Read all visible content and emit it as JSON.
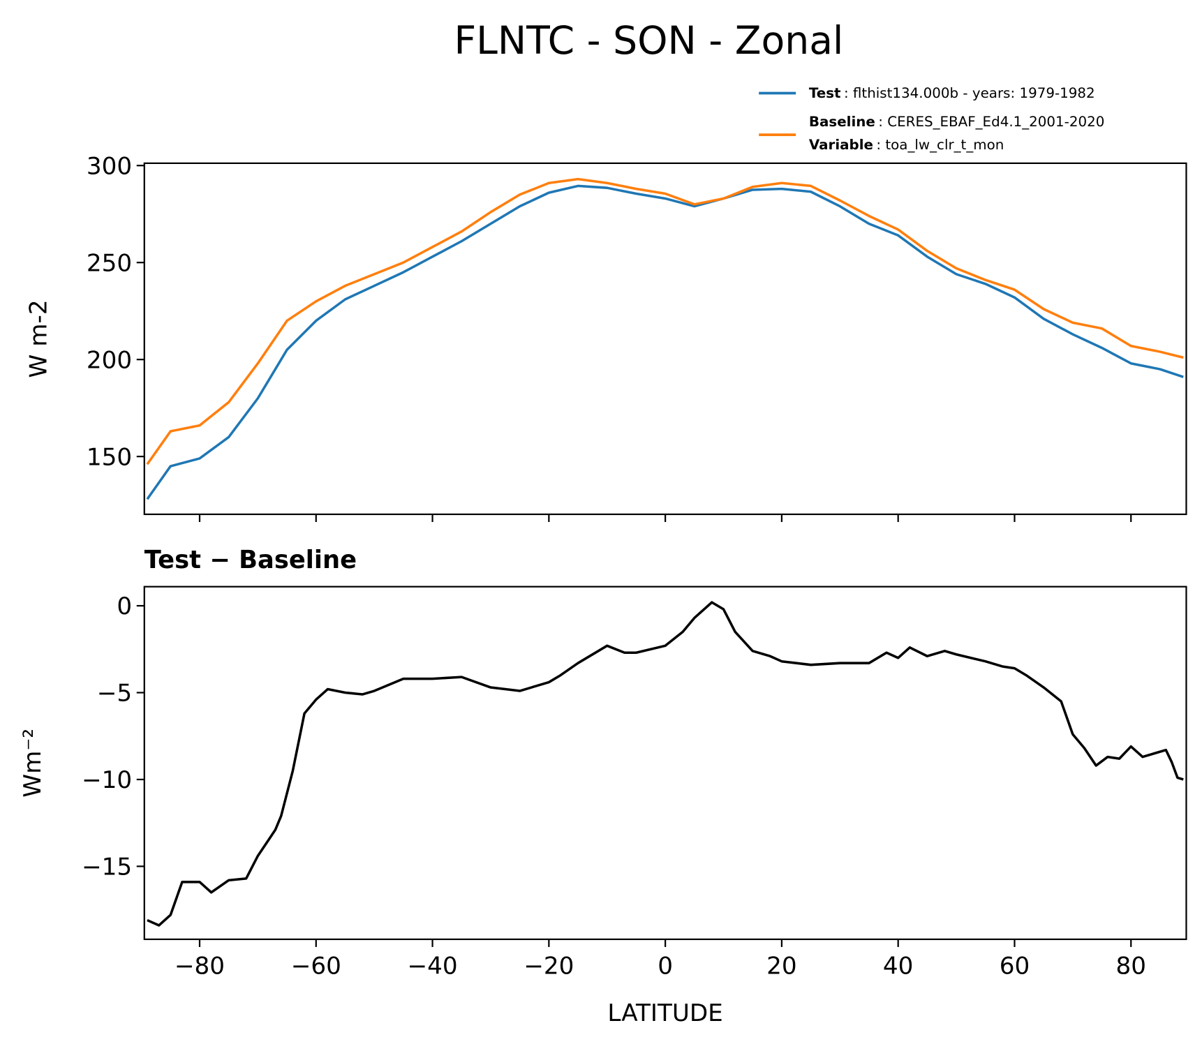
{
  "chart_data": [
    {
      "type": "line",
      "title": "FLNTC - SON - Zonal",
      "ylabel": "W m-2",
      "x": [
        -89,
        -85,
        -80,
        -75,
        -70,
        -65,
        -60,
        -55,
        -50,
        -45,
        -40,
        -35,
        -30,
        -25,
        -20,
        -15,
        -10,
        -5,
        0,
        5,
        10,
        15,
        20,
        25,
        30,
        35,
        40,
        45,
        50,
        55,
        60,
        65,
        70,
        75,
        80,
        85,
        89
      ],
      "series": [
        {
          "name": "Test",
          "legend_text": ": flthist134.000b - years: 1979-1982",
          "color": "#1f77b4",
          "values": [
            128,
            145,
            149,
            160,
            180,
            205,
            220,
            231,
            238,
            245,
            253,
            261,
            270,
            279,
            286,
            289.5,
            288.5,
            285.5,
            283,
            279,
            283,
            287.5,
            288,
            286.5,
            279,
            270,
            264,
            253,
            244,
            239,
            232,
            221,
            213,
            206,
            198,
            195,
            191
          ]
        },
        {
          "name": "Baseline",
          "legend_text": ": CERES_EBAF_Ed4.1_2001-2020",
          "color": "#ff7f0e",
          "values": [
            146,
            163,
            166,
            178,
            198,
            220,
            230,
            238,
            244,
            250,
            258,
            266,
            276,
            285,
            291,
            293,
            291,
            288,
            285.5,
            280,
            283,
            289,
            291,
            289.5,
            282,
            274,
            267,
            256,
            247,
            241,
            236,
            226,
            219,
            216,
            207,
            204,
            201
          ]
        }
      ],
      "legend_extra": {
        "label": "Variable",
        "text": ": toa_lw_clr_t_mon"
      },
      "xlim": [
        -89.5,
        89.5
      ],
      "xticks": [
        -80,
        -60,
        -40,
        -20,
        0,
        20,
        40,
        60,
        80
      ],
      "ylim": [
        120.2,
        301.2
      ],
      "yticks": [
        150,
        200,
        250,
        300
      ]
    },
    {
      "type": "line",
      "title": "Test − Baseline",
      "xlabel": "LATITUDE",
      "ylabel": "Wm⁻²",
      "x": [
        -89,
        -87,
        -85,
        -83,
        -80,
        -78,
        -75,
        -72,
        -70,
        -67,
        -66,
        -64,
        -62,
        -60,
        -58,
        -55,
        -52,
        -50,
        -45,
        -40,
        -35,
        -30,
        -25,
        -20,
        -18,
        -15,
        -10,
        -7,
        -5,
        0,
        3,
        5,
        8,
        10,
        12,
        15,
        18,
        20,
        25,
        30,
        35,
        38,
        40,
        42,
        45,
        48,
        50,
        55,
        58,
        60,
        62,
        65,
        68,
        70,
        72,
        74,
        76,
        78,
        80,
        82,
        84,
        86,
        87,
        88,
        89
      ],
      "series": [
        {
          "color": "#000000",
          "values": [
            -18.1,
            -18.4,
            -17.8,
            -15.9,
            -15.9,
            -16.5,
            -15.8,
            -15.7,
            -14.4,
            -12.9,
            -12.1,
            -9.5,
            -6.2,
            -5.4,
            -4.8,
            -5.0,
            -5.1,
            -4.9,
            -4.2,
            -4.2,
            -4.1,
            -4.7,
            -4.9,
            -4.4,
            -4.0,
            -3.3,
            -2.3,
            -2.7,
            -2.7,
            -2.3,
            -1.5,
            -0.7,
            0.2,
            -0.2,
            -1.5,
            -2.6,
            -2.9,
            -3.2,
            -3.4,
            -3.3,
            -3.3,
            -2.7,
            -3.0,
            -2.4,
            -2.9,
            -2.6,
            -2.8,
            -3.2,
            -3.5,
            -3.6,
            -4.0,
            -4.7,
            -5.5,
            -7.4,
            -8.2,
            -9.2,
            -8.7,
            -8.8,
            -8.1,
            -8.7,
            -8.5,
            -8.3,
            -9.0,
            -9.9,
            -10.0
          ]
        }
      ],
      "xlim": [
        -89.5,
        89.5
      ],
      "xticks": [
        {
          "value": -80,
          "label": "−80"
        },
        {
          "value": -60,
          "label": "−60"
        },
        {
          "value": -40,
          "label": "−40"
        },
        {
          "value": -20,
          "label": "−20"
        },
        0,
        20,
        40,
        60,
        80
      ],
      "ylim": [
        -19.2,
        1.1
      ],
      "yticks": [
        {
          "value": -15,
          "label": "−15"
        },
        {
          "value": -10,
          "label": "−10"
        },
        {
          "value": -5,
          "label": "−5"
        },
        0
      ]
    }
  ]
}
